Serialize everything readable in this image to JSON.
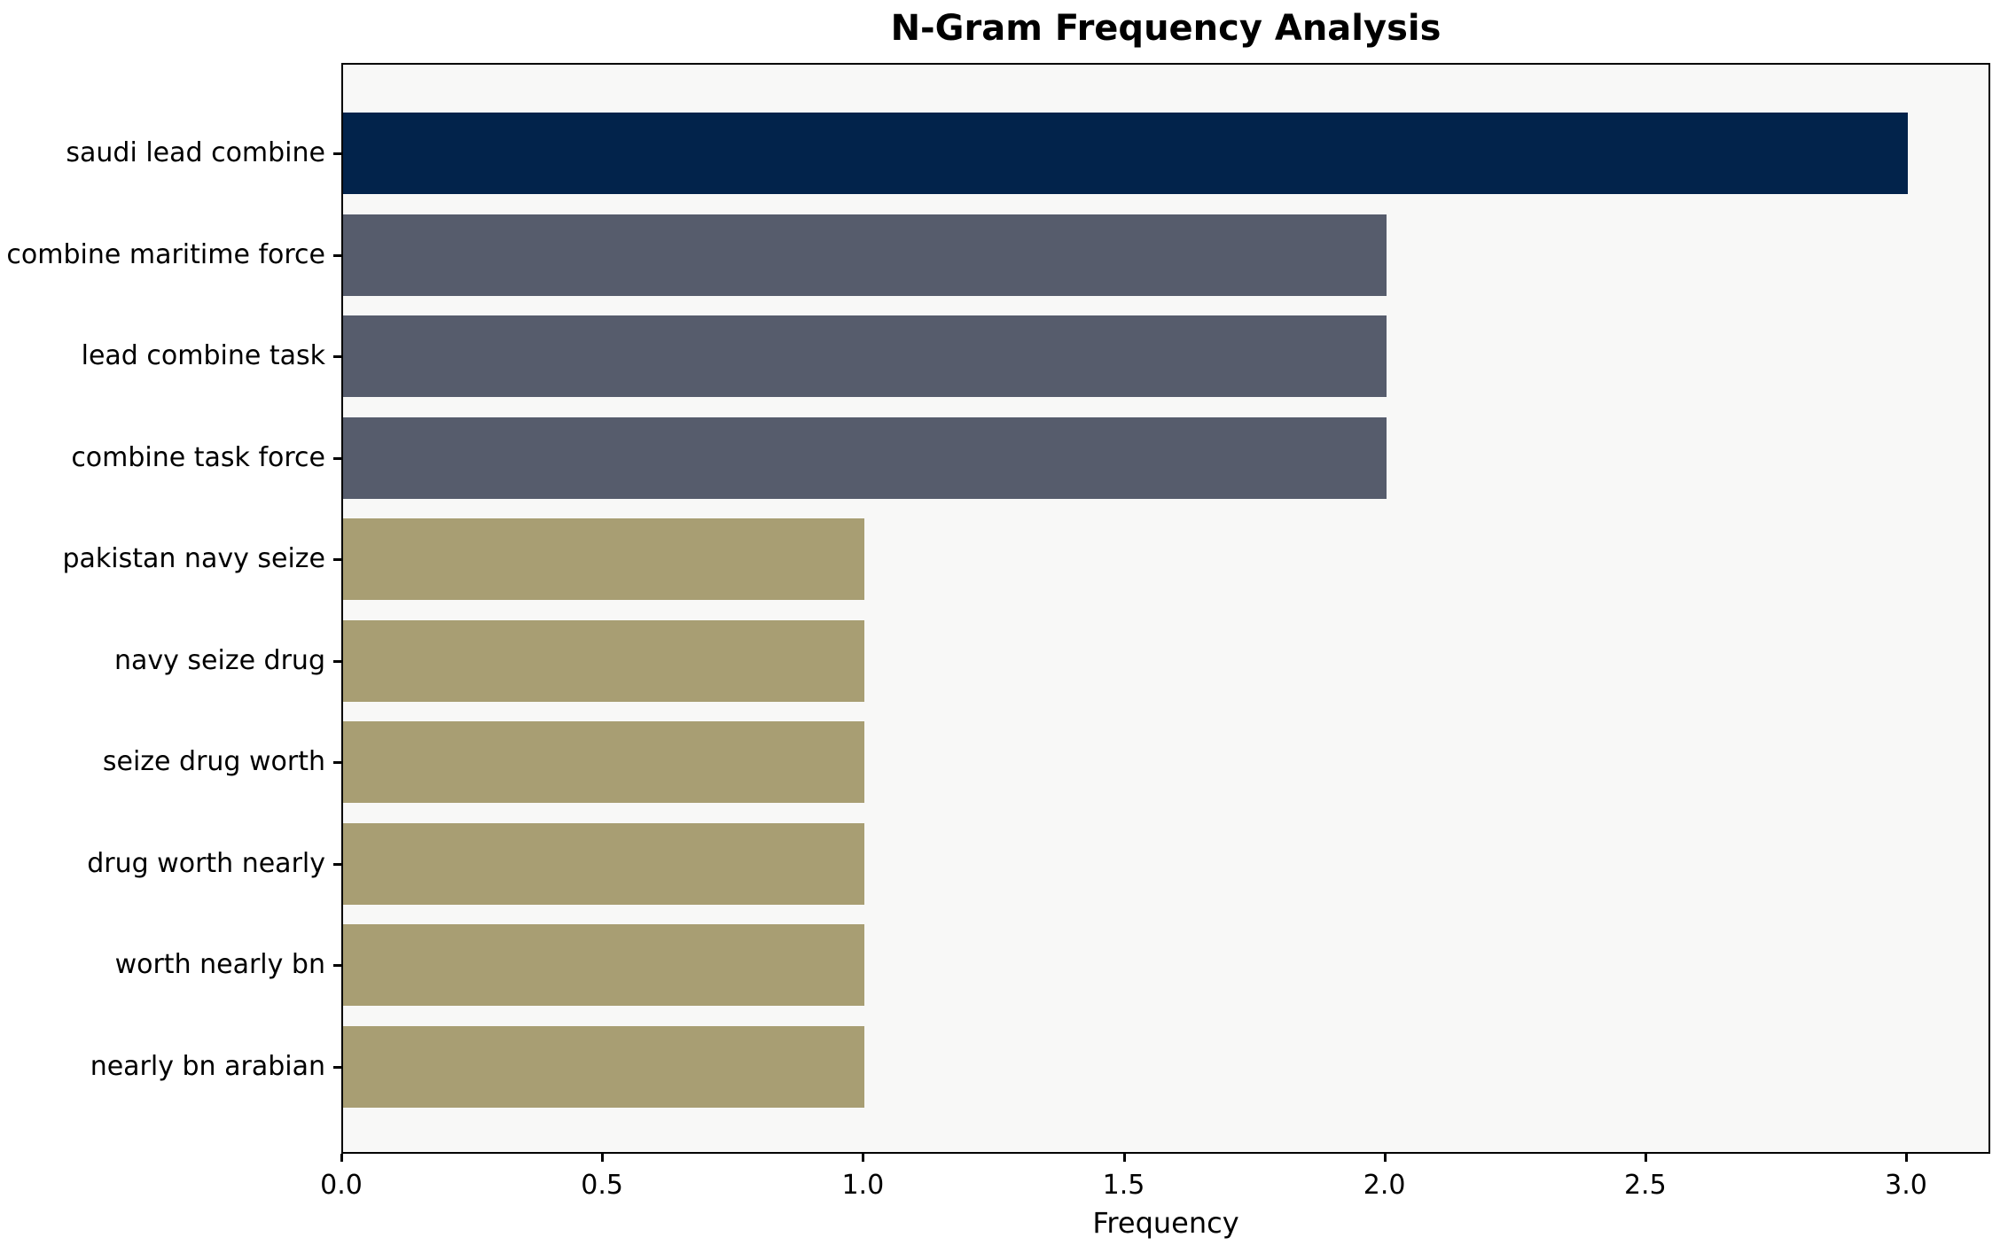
{
  "chart_data": {
    "type": "bar",
    "orientation": "horizontal",
    "title": "N-Gram Frequency Analysis",
    "xlabel": "Frequency",
    "categories": [
      "saudi lead combine",
      "combine maritime force",
      "lead combine task",
      "combine task force",
      "pakistan navy seize",
      "navy seize drug",
      "seize drug worth",
      "drug worth nearly",
      "worth nearly bn",
      "nearly bn arabian"
    ],
    "values": [
      3,
      2,
      2,
      2,
      1,
      1,
      1,
      1,
      1,
      1
    ],
    "bar_colors": [
      "#02234B",
      "#565C6C",
      "#565C6C",
      "#565C6C",
      "#A89E73",
      "#A89E73",
      "#A89E73",
      "#A89E73",
      "#A89E73",
      "#A89E73"
    ],
    "xlim": [
      0,
      3.15
    ],
    "xticks": [
      0.0,
      0.5,
      1.0,
      1.5,
      2.0,
      2.5,
      3.0
    ],
    "xtick_labels": [
      "0.0",
      "0.5",
      "1.0",
      "1.5",
      "2.0",
      "2.5",
      "3.0"
    ],
    "grid": false,
    "plot_background": "#F8F8F7",
    "spine_color": "#000000",
    "text_color": "#000000"
  }
}
